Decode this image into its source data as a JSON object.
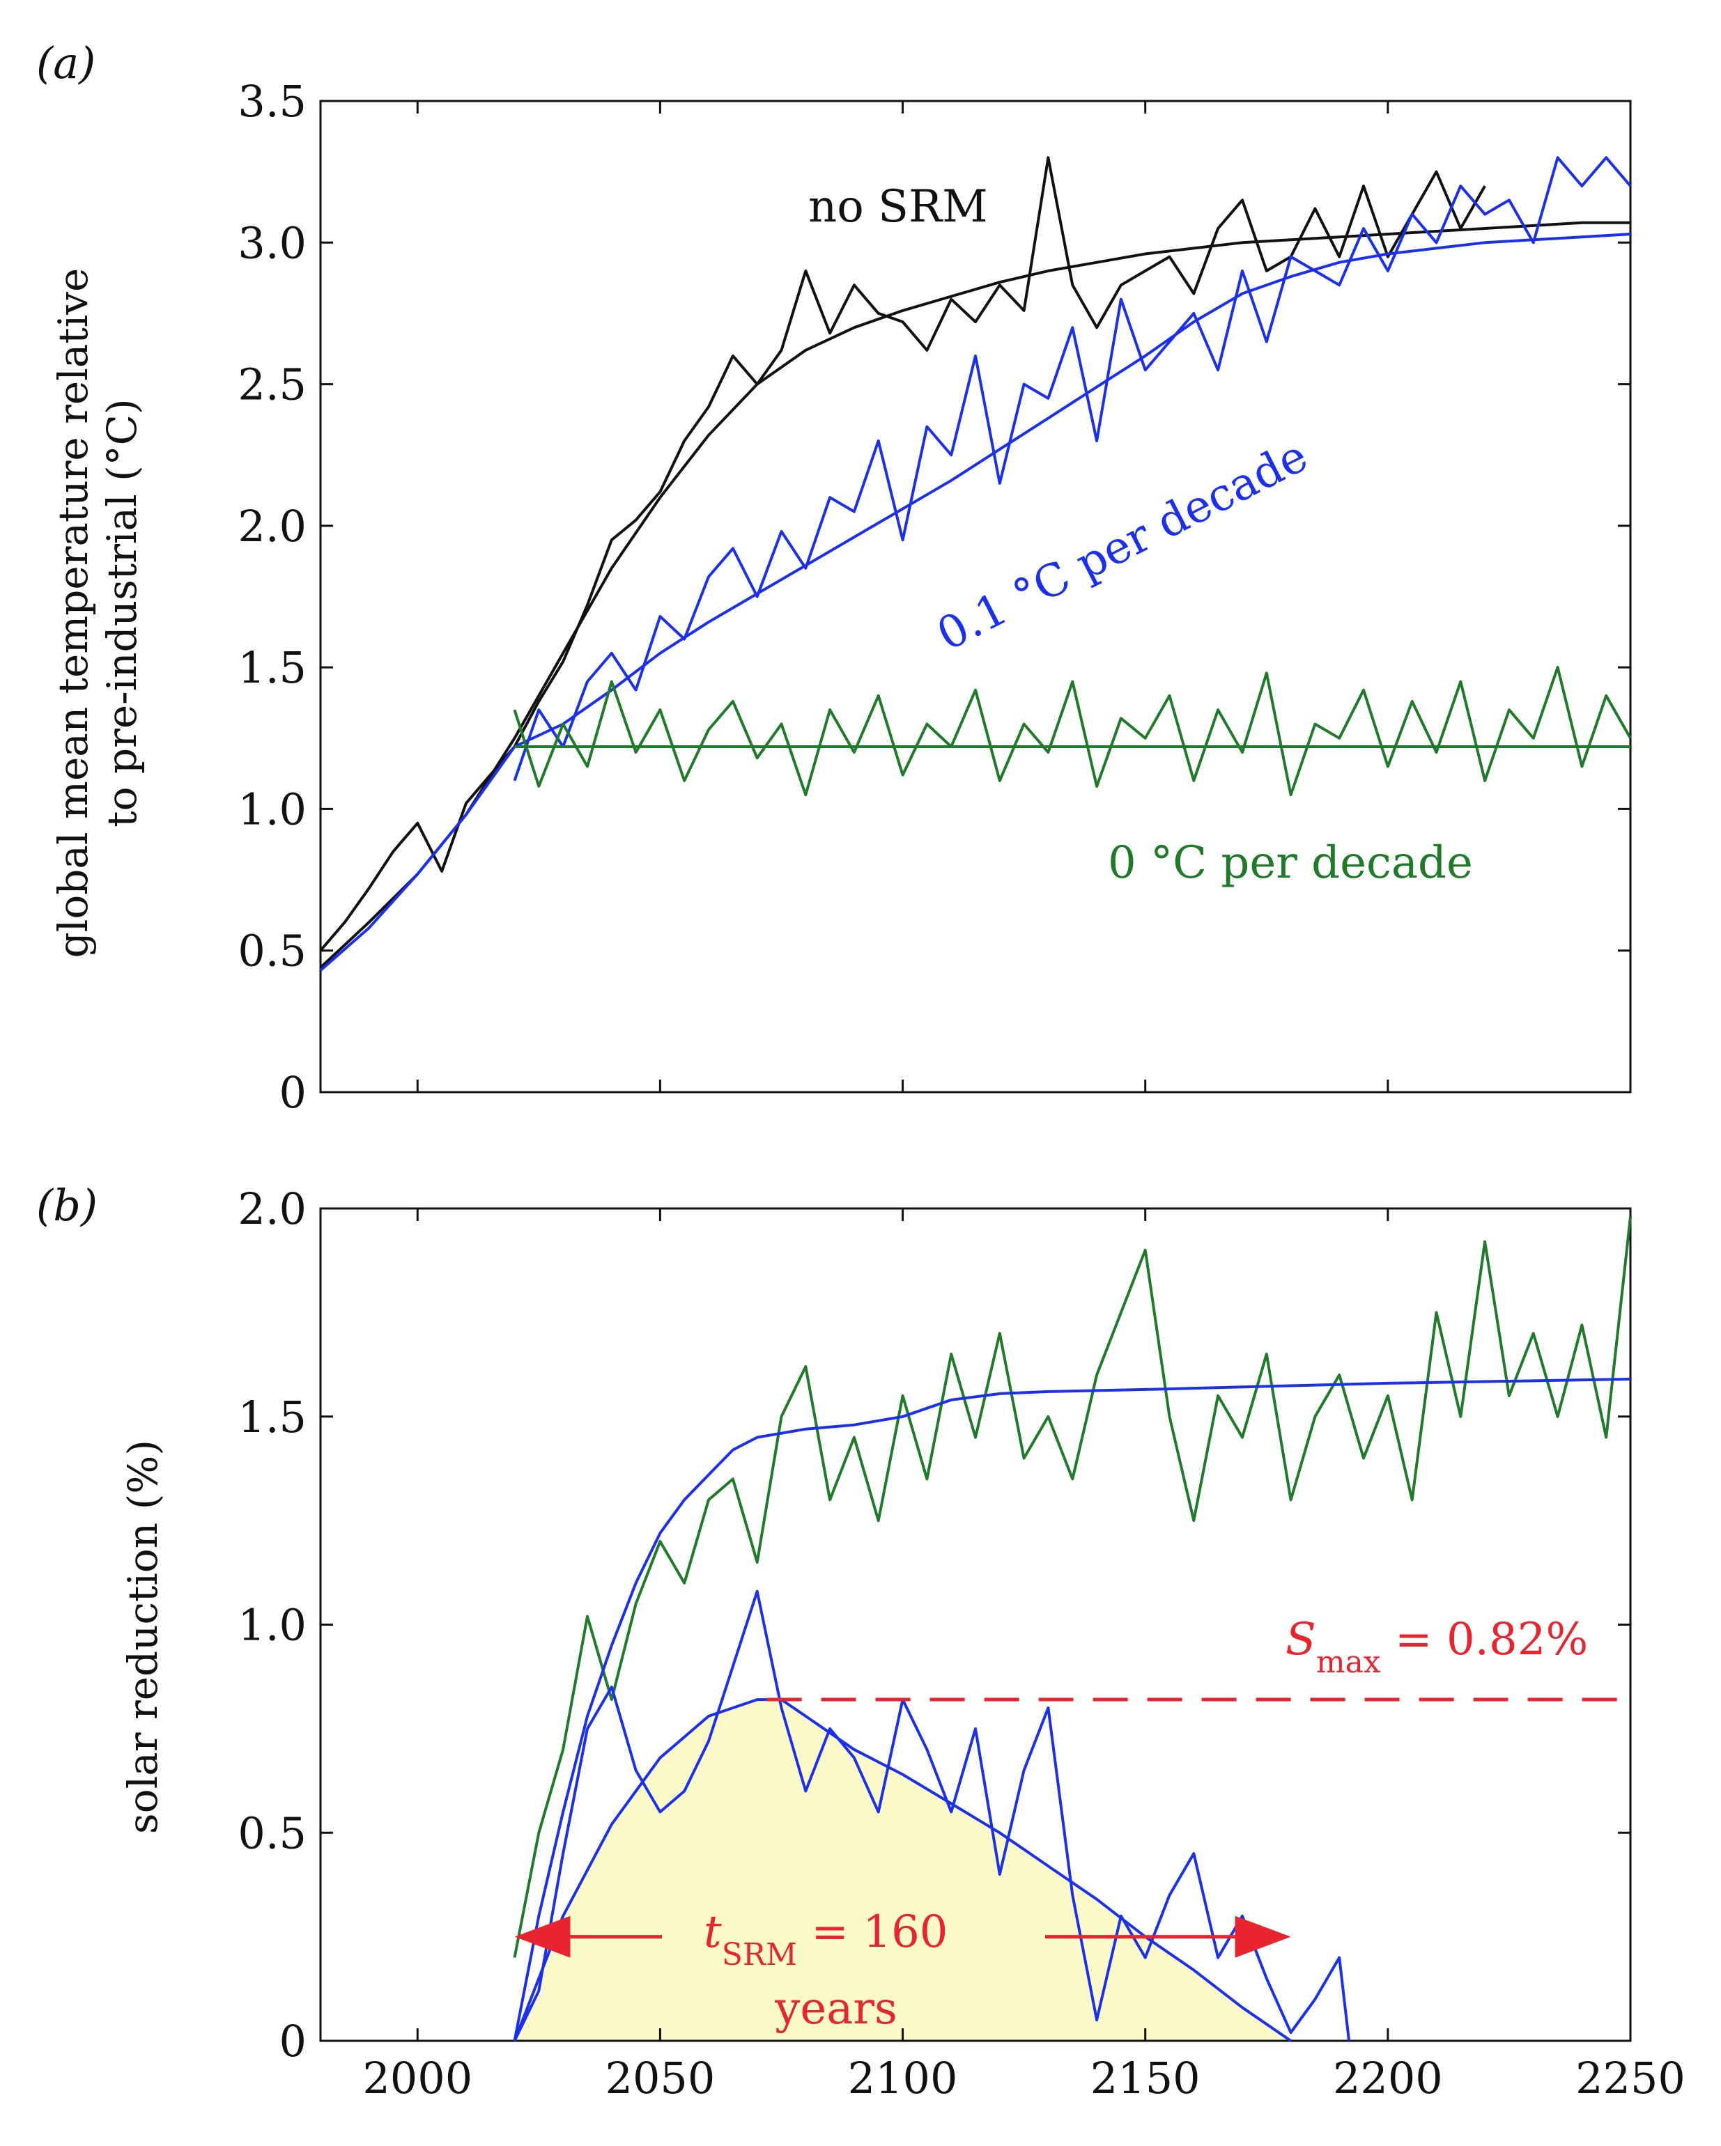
{
  "figure": {
    "panel_a_label": "(a)",
    "panel_b_label": "(b)"
  },
  "chart_data": [
    {
      "type": "line",
      "panel": "(a)",
      "ylabel_line1": "global mean temperature relative",
      "ylabel_line2": "to pre-industrial (°C)",
      "xlabel": "",
      "xlim": [
        1980,
        2250
      ],
      "ylim": [
        0,
        3.5
      ],
      "x_ticks": [
        2000,
        2050,
        2100,
        2150,
        2200,
        2250
      ],
      "y_ticks": [
        {
          "v": 0,
          "label": "0"
        },
        {
          "v": 0.5,
          "label": "0.5"
        },
        {
          "v": 1.0,
          "label": "1.0"
        },
        {
          "v": 1.5,
          "label": "1.5"
        },
        {
          "v": 2.0,
          "label": "2.0"
        },
        {
          "v": 2.5,
          "label": "2.5"
        },
        {
          "v": 3.0,
          "label": "3.0"
        },
        {
          "v": 3.5,
          "label": "3.5"
        }
      ],
      "series": [
        {
          "name": "no SRM (noisy)",
          "color": "#111111",
          "x": [
            1980,
            1985,
            1990,
            1995,
            2000,
            2005,
            2010,
            2015,
            2020,
            2025,
            2030,
            2035,
            2040,
            2045,
            2050,
            2055,
            2060,
            2065,
            2070,
            2075,
            2080,
            2085,
            2090,
            2095,
            2100,
            2105,
            2110,
            2115,
            2120,
            2125,
            2130,
            2135,
            2140,
            2145,
            2150,
            2155,
            2160,
            2165,
            2170,
            2175,
            2180,
            2185,
            2190,
            2195,
            2200,
            2205,
            2210,
            2215,
            2220
          ],
          "values": [
            0.5,
            0.6,
            0.72,
            0.85,
            0.95,
            0.78,
            1.02,
            1.12,
            1.22,
            1.38,
            1.52,
            1.72,
            1.95,
            2.02,
            2.12,
            2.3,
            2.42,
            2.6,
            2.5,
            2.62,
            2.9,
            2.68,
            2.85,
            2.75,
            2.72,
            2.62,
            2.8,
            2.72,
            2.85,
            2.76,
            3.3,
            2.85,
            2.7,
            2.85,
            2.9,
            2.95,
            2.82,
            3.05,
            3.15,
            2.9,
            2.95,
            3.12,
            2.95,
            3.2,
            2.95,
            3.1,
            3.25,
            3.05,
            3.2
          ]
        },
        {
          "name": "no SRM (smooth)",
          "color": "#111111",
          "x": [
            1980,
            1990,
            2000,
            2010,
            2020,
            2030,
            2040,
            2050,
            2060,
            2070,
            2080,
            2090,
            2100,
            2110,
            2120,
            2130,
            2140,
            2150,
            2160,
            2170,
            2180,
            2190,
            2200,
            2210,
            2220,
            2230,
            2240,
            2250
          ],
          "values": [
            0.44,
            0.6,
            0.77,
            0.98,
            1.25,
            1.55,
            1.85,
            2.1,
            2.32,
            2.5,
            2.62,
            2.7,
            2.76,
            2.81,
            2.86,
            2.9,
            2.93,
            2.96,
            2.98,
            3.0,
            3.01,
            3.02,
            3.03,
            3.04,
            3.05,
            3.06,
            3.07,
            3.07
          ]
        },
        {
          "name": "0.1 °C per decade (noisy)",
          "color": "#1a2ff0",
          "x": [
            2020,
            2025,
            2030,
            2035,
            2040,
            2045,
            2050,
            2055,
            2060,
            2065,
            2070,
            2075,
            2080,
            2085,
            2090,
            2095,
            2100,
            2105,
            2110,
            2115,
            2120,
            2125,
            2130,
            2135,
            2140,
            2145,
            2150,
            2155,
            2160,
            2165,
            2170,
            2175,
            2180,
            2185,
            2190,
            2195,
            2200,
            2205,
            2210,
            2215,
            2220,
            2225,
            2230,
            2235,
            2240,
            2245,
            2250
          ],
          "values": [
            1.1,
            1.35,
            1.22,
            1.45,
            1.55,
            1.42,
            1.68,
            1.6,
            1.82,
            1.92,
            1.75,
            1.98,
            1.85,
            2.1,
            2.05,
            2.3,
            1.95,
            2.35,
            2.25,
            2.6,
            2.15,
            2.5,
            2.45,
            2.7,
            2.3,
            2.8,
            2.55,
            2.65,
            2.75,
            2.55,
            2.9,
            2.65,
            2.95,
            2.9,
            2.85,
            3.05,
            2.9,
            3.1,
            3.0,
            3.2,
            3.1,
            3.15,
            3.0,
            3.3,
            3.2,
            3.3,
            3.2
          ]
        },
        {
          "name": "0.1 °C per decade (smooth)",
          "color": "#1a2ff0",
          "x": [
            1980,
            1990,
            2000,
            2010,
            2020,
            2030,
            2040,
            2050,
            2060,
            2070,
            2080,
            2090,
            2100,
            2110,
            2120,
            2130,
            2140,
            2150,
            2160,
            2170,
            2180,
            2190,
            2200,
            2210,
            2220,
            2230,
            2240,
            2250
          ],
          "values": [
            0.43,
            0.58,
            0.77,
            0.98,
            1.22,
            1.3,
            1.42,
            1.55,
            1.66,
            1.76,
            1.86,
            1.96,
            2.06,
            2.16,
            2.27,
            2.38,
            2.49,
            2.6,
            2.72,
            2.82,
            2.88,
            2.93,
            2.96,
            2.98,
            3.0,
            3.01,
            3.02,
            3.03
          ]
        },
        {
          "name": "0 °C per decade (noisy)",
          "color": "#1f7a2a",
          "x": [
            2020,
            2025,
            2030,
            2035,
            2040,
            2045,
            2050,
            2055,
            2060,
            2065,
            2070,
            2075,
            2080,
            2085,
            2090,
            2095,
            2100,
            2105,
            2110,
            2115,
            2120,
            2125,
            2130,
            2135,
            2140,
            2145,
            2150,
            2155,
            2160,
            2165,
            2170,
            2175,
            2180,
            2185,
            2190,
            2195,
            2200,
            2205,
            2210,
            2215,
            2220,
            2225,
            2230,
            2235,
            2240,
            2245,
            2250
          ],
          "values": [
            1.35,
            1.08,
            1.3,
            1.15,
            1.45,
            1.2,
            1.35,
            1.1,
            1.28,
            1.38,
            1.18,
            1.3,
            1.05,
            1.35,
            1.2,
            1.4,
            1.12,
            1.3,
            1.22,
            1.42,
            1.1,
            1.3,
            1.2,
            1.45,
            1.08,
            1.32,
            1.25,
            1.4,
            1.1,
            1.35,
            1.2,
            1.48,
            1.05,
            1.3,
            1.25,
            1.42,
            1.15,
            1.38,
            1.2,
            1.45,
            1.1,
            1.35,
            1.25,
            1.5,
            1.15,
            1.4,
            1.25
          ]
        },
        {
          "name": "0 °C per decade (smooth)",
          "color": "#1f7a2a",
          "x": [
            2020,
            2250
          ],
          "values": [
            1.22,
            1.22
          ]
        }
      ],
      "annotations": [
        {
          "text": "no SRM",
          "color": "#111111"
        },
        {
          "text": "0.1 °C per decade",
          "color": "#1a2ff0"
        },
        {
          "text": "0 °C per decade",
          "color": "#1f7a2a"
        }
      ]
    },
    {
      "type": "line",
      "panel": "(b)",
      "ylabel": "solar reduction (%)",
      "xlabel": "",
      "xlim": [
        1980,
        2250
      ],
      "ylim": [
        0,
        2.0
      ],
      "x_ticks": [
        2000,
        2050,
        2100,
        2150,
        2200,
        2250
      ],
      "y_ticks": [
        {
          "v": 0,
          "label": "0"
        },
        {
          "v": 0.5,
          "label": "0.5"
        },
        {
          "v": 1.0,
          "label": "1.0"
        },
        {
          "v": 1.5,
          "label": "1.5"
        },
        {
          "v": 2.0,
          "label": "2.0"
        }
      ],
      "series": [
        {
          "name": "0 °C per decade (noisy)",
          "color": "#1f7a2a",
          "x": [
            2020,
            2025,
            2030,
            2035,
            2040,
            2045,
            2050,
            2055,
            2060,
            2065,
            2070,
            2075,
            2080,
            2085,
            2090,
            2095,
            2100,
            2105,
            2110,
            2115,
            2120,
            2125,
            2130,
            2135,
            2140,
            2145,
            2150,
            2155,
            2160,
            2165,
            2170,
            2175,
            2180,
            2185,
            2190,
            2195,
            2200,
            2205,
            2210,
            2215,
            2220,
            2225,
            2230,
            2235,
            2240,
            2245,
            2250
          ],
          "values": [
            0.2,
            0.5,
            0.7,
            1.02,
            0.82,
            1.05,
            1.2,
            1.1,
            1.3,
            1.35,
            1.15,
            1.5,
            1.62,
            1.3,
            1.45,
            1.25,
            1.55,
            1.35,
            1.65,
            1.45,
            1.7,
            1.4,
            1.5,
            1.35,
            1.6,
            1.75,
            1.9,
            1.5,
            1.25,
            1.55,
            1.45,
            1.65,
            1.3,
            1.5,
            1.6,
            1.4,
            1.55,
            1.3,
            1.75,
            1.5,
            1.92,
            1.55,
            1.7,
            1.5,
            1.72,
            1.45,
            1.98
          ]
        },
        {
          "name": "0 °C per decade (smooth)",
          "color": "#1a2ff0",
          "x": [
            2020,
            2025,
            2030,
            2035,
            2040,
            2045,
            2050,
            2055,
            2060,
            2065,
            2070,
            2075,
            2080,
            2090,
            2100,
            2110,
            2120,
            2130,
            2150,
            2200,
            2250
          ],
          "values": [
            0.0,
            0.3,
            0.55,
            0.78,
            0.95,
            1.1,
            1.22,
            1.3,
            1.36,
            1.42,
            1.45,
            1.46,
            1.47,
            1.48,
            1.5,
            1.54,
            1.555,
            1.56,
            1.565,
            1.58,
            1.59
          ]
        },
        {
          "name": "0.1 °C per decade (noisy)",
          "color": "#1a2ff0",
          "x": [
            2020,
            2025,
            2030,
            2035,
            2040,
            2045,
            2050,
            2055,
            2060,
            2065,
            2070,
            2075,
            2080,
            2085,
            2090,
            2095,
            2100,
            2105,
            2110,
            2115,
            2120,
            2125,
            2130,
            2135,
            2140,
            2145,
            2150,
            2155,
            2160,
            2165,
            2170,
            2175,
            2180,
            2185,
            2190,
            2192
          ],
          "values": [
            0.0,
            0.12,
            0.45,
            0.75,
            0.85,
            0.65,
            0.55,
            0.6,
            0.72,
            0.9,
            1.08,
            0.8,
            0.6,
            0.75,
            0.68,
            0.55,
            0.82,
            0.7,
            0.55,
            0.75,
            0.4,
            0.65,
            0.8,
            0.35,
            0.05,
            0.3,
            0.2,
            0.35,
            0.45,
            0.2,
            0.3,
            0.15,
            0.02,
            0.1,
            0.2,
            0.0
          ]
        },
        {
          "name": "0.1 °C per decade (smooth)",
          "color": "#1a2ff0",
          "x": [
            2020,
            2025,
            2030,
            2040,
            2050,
            2060,
            2070,
            2075,
            2080,
            2090,
            2100,
            2110,
            2120,
            2130,
            2140,
            2150,
            2160,
            2170,
            2180
          ],
          "values": [
            0.0,
            0.15,
            0.3,
            0.52,
            0.68,
            0.78,
            0.82,
            0.82,
            0.78,
            0.7,
            0.64,
            0.57,
            0.5,
            0.42,
            0.34,
            0.25,
            0.17,
            0.08,
            0.0
          ]
        }
      ],
      "shaded_region": {
        "name": "SRM period",
        "color": "#fcfac8",
        "x_start": 2028,
        "x_end": 2178
      },
      "smax_line": {
        "value": 0.82,
        "x_start": 2072,
        "x_end": 2250,
        "color": "#e8242f"
      },
      "arrow": {
        "x_start": 2020,
        "x_end": 2180,
        "y": 0.25,
        "color": "#e8242f"
      },
      "annotations": [
        {
          "text_main": "S",
          "text_sub": "max",
          "text_rest": " = 0.82%",
          "color": "#e8242f"
        },
        {
          "text_main": "t",
          "text_sub": "SRM",
          "text_rest": " = 160",
          "text_line2": "years",
          "color": "#e8242f"
        }
      ]
    }
  ]
}
